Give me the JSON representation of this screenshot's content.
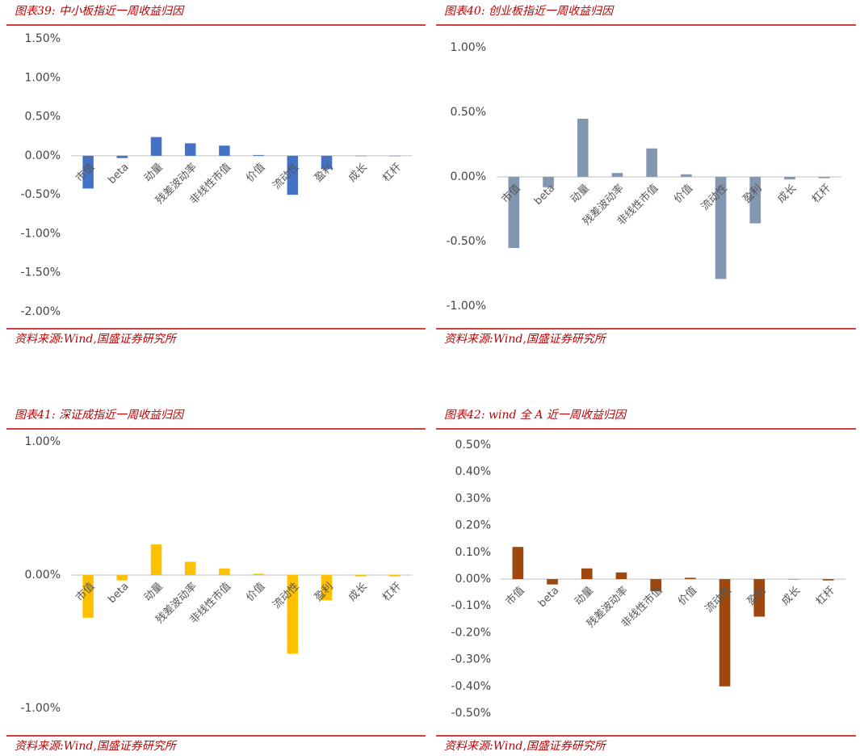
{
  "chart_data": [
    {
      "type": "bar",
      "title": "图表39:  中小板指近一周收益归因",
      "source": "资料来源:Wind,国盛证券研究所",
      "color": "#4472c4",
      "categories": [
        "市值",
        "beta",
        "动量",
        "残差波动率",
        "非线性市值",
        "价值",
        "流动性",
        "盈利",
        "成长",
        "杠杆"
      ],
      "values": [
        -0.42,
        -0.03,
        0.24,
        0.16,
        0.13,
        0.01,
        -0.5,
        -0.17,
        0,
        0
      ],
      "ylim": [
        -2,
        1.5
      ],
      "yticks": [
        {
          "value": -2,
          "label": "-2.00%"
        },
        {
          "value": -1.5,
          "label": "-1.50%"
        },
        {
          "value": -1,
          "label": "-1.00%"
        },
        {
          "value": -0.5,
          "label": "-0.50%"
        },
        {
          "value": 0,
          "label": "0.00%"
        },
        {
          "value": 0.5,
          "label": "0.50%"
        },
        {
          "value": 1,
          "label": "1.00%"
        },
        {
          "value": 1.5,
          "label": "1.50%"
        }
      ],
      "grid": false
    },
    {
      "type": "bar",
      "title": "图表40:  创业板指近一周收益归因",
      "source": "资料来源:Wind,国盛证券研究所",
      "color": "#8497b0",
      "categories": [
        "市值",
        "beta",
        "动量",
        "残差波动率",
        "非线性市值",
        "价值",
        "流动性",
        "盈利",
        "成长",
        "杠杆"
      ],
      "values": [
        -0.55,
        -0.08,
        0.45,
        0.03,
        0.22,
        0.02,
        -0.79,
        -0.36,
        -0.02,
        -0.01
      ],
      "ylim": [
        -1,
        1
      ],
      "yticks": [
        {
          "value": -1,
          "label": "-1.00%"
        },
        {
          "value": -0.5,
          "label": "-0.50%"
        },
        {
          "value": 0,
          "label": "0.00%"
        },
        {
          "value": 0.5,
          "label": "0.50%"
        },
        {
          "value": 1,
          "label": "1.00%"
        }
      ],
      "grid": false
    },
    {
      "type": "bar",
      "title": "图表41:  深证成指近一周收益归因",
      "source": "资料来源:Wind,国盛证券研究所",
      "color": "#ffc000",
      "categories": [
        "市值",
        "beta",
        "动量",
        "残差波动率",
        "非线性市值",
        "价值",
        "流动性",
        "盈利",
        "成长",
        "杠杆"
      ],
      "values": [
        -0.32,
        -0.04,
        0.23,
        0.1,
        0.05,
        0.01,
        -0.59,
        -0.19,
        -0.01,
        -0.01
      ],
      "ylim": [
        -1,
        1
      ],
      "yticks": [
        {
          "value": -1,
          "label": "-1.00%"
        },
        {
          "value": 0,
          "label": "0.00%"
        },
        {
          "value": 1,
          "label": "1.00%"
        }
      ],
      "grid": false
    },
    {
      "type": "bar",
      "title": "图表42:  wind 全 A 近一周收益归因",
      "source": "资料来源:Wind,国盛证券研究所",
      "color": "#9e480e",
      "categories": [
        "市值",
        "beta",
        "动量",
        "残差波动率",
        "非线性市值",
        "价值",
        "流动性",
        "盈利",
        "成长",
        "杠杆"
      ],
      "values": [
        0.12,
        -0.02,
        0.04,
        0.025,
        -0.045,
        0.005,
        -0.4,
        -0.14,
        0,
        -0.005
      ],
      "ylim": [
        -0.5,
        0.5
      ],
      "yticks": [
        {
          "value": -0.5,
          "label": "-0.50%"
        },
        {
          "value": -0.4,
          "label": "-0.40%"
        },
        {
          "value": -0.3,
          "label": "-0.30%"
        },
        {
          "value": -0.2,
          "label": "-0.20%"
        },
        {
          "value": -0.1,
          "label": "-0.10%"
        },
        {
          "value": 0,
          "label": "0.00%"
        },
        {
          "value": 0.1,
          "label": "0.10%"
        },
        {
          "value": 0.2,
          "label": "0.20%"
        },
        {
          "value": 0.3,
          "label": "0.30%"
        },
        {
          "value": 0.4,
          "label": "0.40%"
        },
        {
          "value": 0.5,
          "label": "0.50%"
        }
      ],
      "grid": false
    }
  ]
}
